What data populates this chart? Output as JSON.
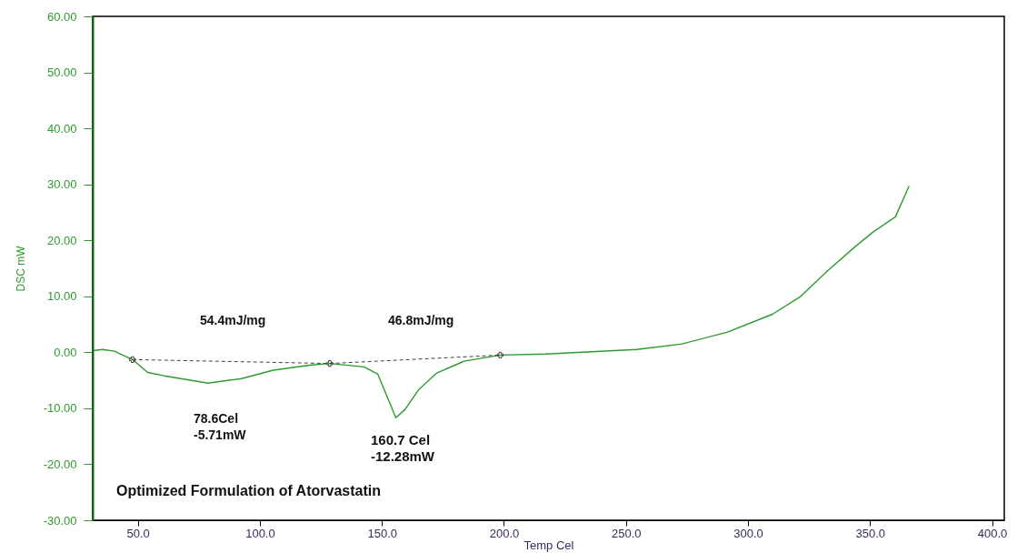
{
  "chart_data": {
    "type": "line",
    "xlabel": "Temp Cel",
    "ylabel": "DSC mW",
    "xlim": [
      31.5,
      405
    ],
    "ylim": [
      -30,
      60
    ],
    "xticks": [
      {
        "value": 50,
        "label": "50.0"
      },
      {
        "value": 100,
        "label": "100.0"
      },
      {
        "value": 150,
        "label": "150.0"
      },
      {
        "value": 200,
        "label": "200.0"
      },
      {
        "value": 250,
        "label": "250.0"
      },
      {
        "value": 300,
        "label": "300.0"
      },
      {
        "value": 350,
        "label": "350.0"
      },
      {
        "value": 400,
        "label": "400.0"
      }
    ],
    "yticks": [
      {
        "value": -30,
        "label": "-30.00"
      },
      {
        "value": -20,
        "label": "-20.00"
      },
      {
        "value": -10,
        "label": "-10.00"
      },
      {
        "value": 0,
        "label": "0.00"
      },
      {
        "value": 10,
        "label": "10.00"
      },
      {
        "value": 20,
        "label": "20.00"
      },
      {
        "value": 30,
        "label": "30.00"
      },
      {
        "value": 40,
        "label": "40.00"
      },
      {
        "value": 50,
        "label": "50.00"
      },
      {
        "value": 60,
        "label": "60.00"
      }
    ],
    "grid": false,
    "series": [
      {
        "color": "#2e9a2e",
        "line_style": "solid",
        "x": [
          31.8,
          35.5,
          40.4,
          47.8,
          54.1,
          60.8,
          78.7,
          92.5,
          105.5,
          120.4,
          128.6,
          142.7,
          148.3,
          152,
          155.7,
          159.5,
          165,
          172.5,
          183.6,
          198.5,
          217,
          254.4,
          273,
          291.6,
          310,
          321.3,
          332.5,
          343.7,
          351,
          360.4,
          366
        ],
        "values": [
          0.3,
          0.5,
          0.2,
          -1.3,
          -3.6,
          -4.2,
          -5.5,
          -4.7,
          -3.2,
          -2.3,
          -2.0,
          -2.6,
          -3.9,
          -7.8,
          -11.7,
          -10.2,
          -6.7,
          -3.7,
          -1.6,
          -0.5,
          -0.3,
          0.5,
          1.5,
          3.6,
          6.8,
          9.9,
          14.5,
          18.8,
          21.4,
          24.2,
          29.7
        ]
      },
      {
        "color": "#404040",
        "line_style": "dashed",
        "marker": "cross",
        "x": [
          47.8,
          128.6,
          198.5
        ],
        "values": [
          -1.3,
          -2.0,
          -0.5
        ]
      }
    ],
    "annotations": [
      "54.4mJ/mg",
      "46.8mJ/mg",
      "78.6Cel\n-5.71mW",
      "160.7 Cel\n-12.28mW",
      "Optimized Formulation of Atorvastatin"
    ]
  }
}
